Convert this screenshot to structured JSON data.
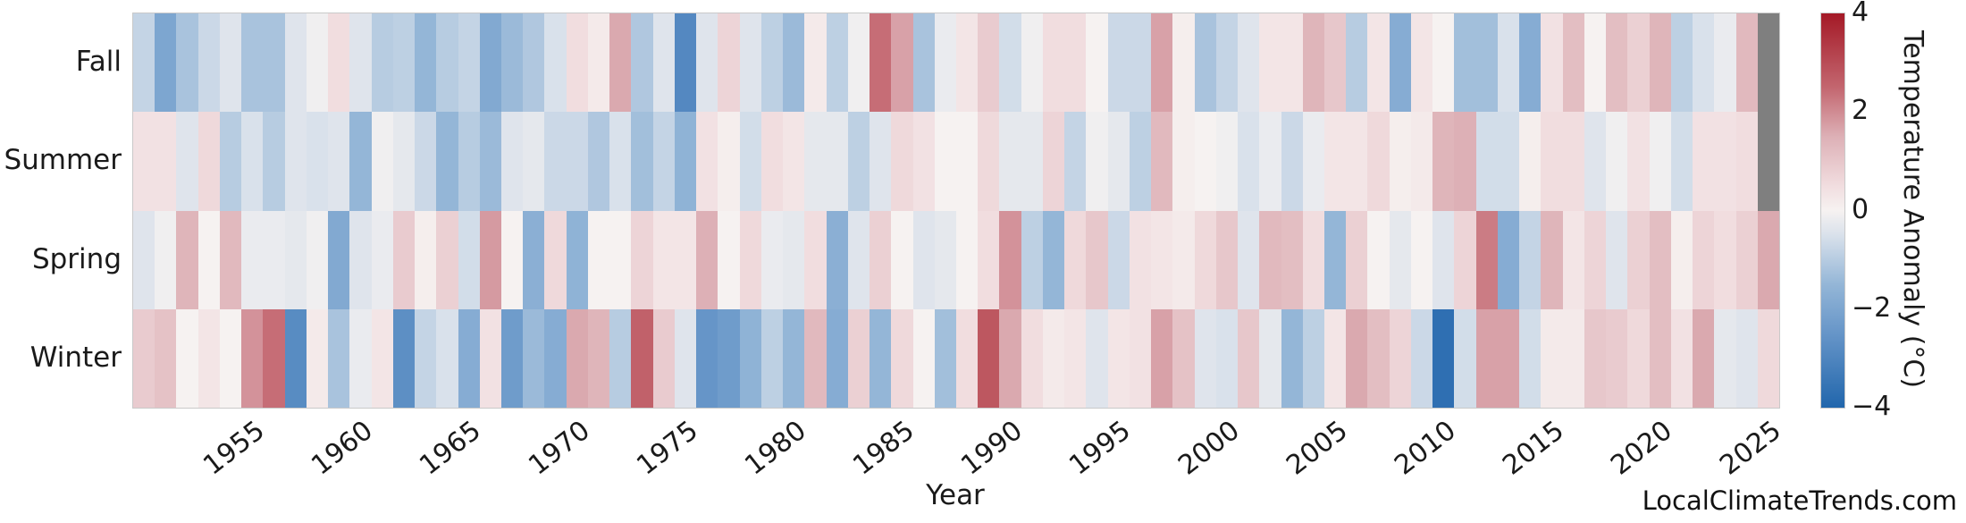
{
  "chart_data": {
    "type": "heatmap",
    "title": "",
    "xlabel": "Year",
    "rows": [
      "Fall",
      "Summer",
      "Spring",
      "Winter"
    ],
    "year_start": 1950,
    "year_end": 2025,
    "x_ticks": [
      1955,
      1960,
      1965,
      1970,
      1975,
      1980,
      1985,
      1990,
      1995,
      2000,
      2005,
      2010,
      2015,
      2020,
      2025
    ],
    "values": {
      "Fall": [
        -0.8,
        -2.0,
        -1.2,
        -0.7,
        -0.4,
        -1.2,
        -1.2,
        -0.4,
        -0.1,
        0.5,
        -0.4,
        -1.0,
        -0.9,
        -1.5,
        -1.0,
        -0.8,
        -1.9,
        -1.4,
        -1.1,
        -0.5,
        0.5,
        0.2,
        1.6,
        -1.1,
        -0.4,
        -2.9,
        -0.4,
        0.7,
        -0.4,
        -0.9,
        -1.4,
        0.2,
        -0.9,
        -0.1,
        2.4,
        1.7,
        -1.2,
        -0.2,
        0.3,
        0.9,
        -0.6,
        -0.1,
        0.5,
        0.5,
        0.0,
        -0.7,
        -0.7,
        1.7,
        0.1,
        -1.2,
        -0.8,
        -0.4,
        0.3,
        0.3,
        1.4,
        1.0,
        -1.0,
        0.3,
        -1.8,
        0.3,
        0.0,
        -1.3,
        -1.3,
        -0.5,
        -1.8,
        0.4,
        1.2,
        0.0,
        1.2,
        0.8,
        1.4,
        -0.9,
        -0.5,
        -0.2,
        1.3,
        null
      ],
      "Summer": [
        0.4,
        0.4,
        -0.4,
        0.6,
        -1.0,
        -0.5,
        -1.0,
        -0.4,
        -0.5,
        -0.4,
        -1.5,
        -0.1,
        -0.3,
        -0.7,
        -1.5,
        -1.0,
        -1.4,
        -0.4,
        -0.3,
        -0.7,
        -0.7,
        -1.1,
        -0.5,
        -1.3,
        -0.8,
        -1.6,
        0.4,
        0.1,
        -0.6,
        0.5,
        0.3,
        -0.3,
        -0.3,
        -0.9,
        -0.4,
        0.6,
        0.4,
        0.0,
        0.0,
        0.6,
        -0.3,
        -0.3,
        0.7,
        -0.8,
        -0.1,
        -0.3,
        -0.9,
        1.3,
        0.1,
        0.0,
        -0.1,
        -0.5,
        -0.2,
        -0.7,
        -0.2,
        0.3,
        0.3,
        0.6,
        0.1,
        0.2,
        1.4,
        1.5,
        -0.6,
        -0.6,
        0.1,
        0.5,
        0.5,
        -0.4,
        -0.1,
        0.4,
        -0.1,
        -0.6,
        0.4,
        0.4,
        0.5,
        null
      ],
      "Spring": [
        -0.4,
        -0.1,
        1.4,
        0.0,
        1.3,
        -0.2,
        -0.2,
        -0.3,
        -0.1,
        -1.9,
        -0.4,
        -0.2,
        0.9,
        0.1,
        0.8,
        -0.6,
        1.8,
        0.0,
        -1.7,
        0.6,
        -1.6,
        0.0,
        0.0,
        0.7,
        0.3,
        0.3,
        1.5,
        0.0,
        0.6,
        -0.2,
        -0.3,
        0.5,
        -1.7,
        -0.4,
        0.8,
        0.0,
        -0.4,
        -0.3,
        0.0,
        0.5,
        1.9,
        -0.9,
        -1.5,
        0.6,
        1.0,
        -0.7,
        0.4,
        0.3,
        0.2,
        0.6,
        1.0,
        -0.4,
        1.3,
        1.2,
        0.5,
        -1.5,
        0.8,
        0.0,
        -0.3,
        0.0,
        -0.4,
        0.7,
        2.2,
        -1.8,
        -0.8,
        1.4,
        0.3,
        0.7,
        -0.4,
        0.8,
        1.2,
        0.1,
        0.7,
        0.5,
        0.8,
        1.6
      ],
      "Winter": [
        0.9,
        1.1,
        0.0,
        0.3,
        0.0,
        1.9,
        2.4,
        -2.8,
        0.2,
        -1.2,
        -0.2,
        0.3,
        -2.7,
        -0.8,
        -0.5,
        -1.8,
        0.4,
        -2.3,
        -1.4,
        -1.8,
        1.6,
        1.4,
        -1.0,
        2.6,
        0.9,
        -0.4,
        -2.5,
        -2.3,
        -1.6,
        -0.9,
        -1.5,
        1.3,
        -1.8,
        0.8,
        -1.5,
        0.6,
        0.0,
        -1.3,
        0.5,
        2.8,
        1.6,
        0.5,
        0.2,
        0.3,
        -0.4,
        0.3,
        0.4,
        1.7,
        1.1,
        -0.4,
        -0.5,
        1.0,
        -0.3,
        -1.5,
        -0.9,
        0.3,
        1.6,
        1.2,
        0.7,
        -0.7,
        -3.7,
        -0.6,
        1.7,
        1.7,
        -0.6,
        0.2,
        0.2,
        1.0,
        0.9,
        0.6,
        1.2,
        0.4,
        1.6,
        -0.3,
        -0.4,
        0.6
      ]
    },
    "missing_value_color": "#7f7f7f",
    "colorbar": {
      "label": "Temperature Anomaly (°C)",
      "ticks": [
        4,
        2,
        0,
        -2,
        -4
      ],
      "vmin": -4,
      "vmax": 4
    },
    "colormap_stops": [
      [
        -4.0,
        "#2166ac"
      ],
      [
        -2.5,
        "#6695c8"
      ],
      [
        -1.5,
        "#94b6d7"
      ],
      [
        -0.5,
        "#d9e1eb"
      ],
      [
        0.0,
        "#f6f2f1"
      ],
      [
        0.5,
        "#f1dddf"
      ],
      [
        1.5,
        "#ddb0b6"
      ],
      [
        2.5,
        "#c3666f"
      ],
      [
        4.0,
        "#a41926"
      ]
    ],
    "legend_position": "right",
    "grid": false
  },
  "watermark": "LocalClimateTrends.com"
}
